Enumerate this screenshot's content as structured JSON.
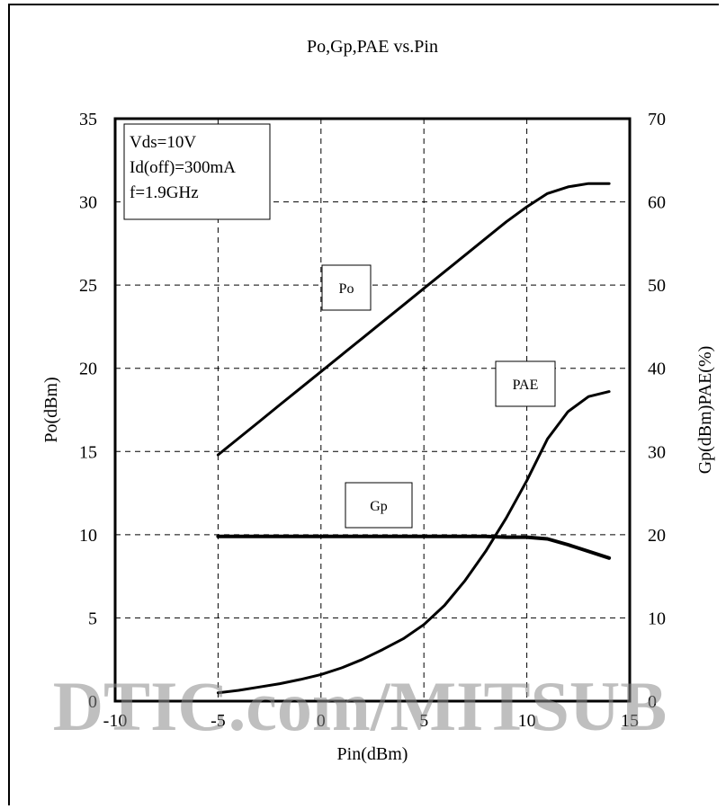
{
  "chart_data": {
    "type": "line",
    "title": "Po,Gp,PAE vs.Pin",
    "xlabel": "Pin(dBm)",
    "ylabel": "Po(dBm)",
    "y2label": "Gp(dBm)PAE(%)",
    "xlim": [
      -10,
      15
    ],
    "ylim": [
      0,
      35
    ],
    "y2lim": [
      0,
      70
    ],
    "xticks": [
      "-10",
      "-5",
      "0",
      "5",
      "10",
      "15"
    ],
    "yticks": [
      "0",
      "5",
      "10",
      "15",
      "20",
      "25",
      "30",
      "35"
    ],
    "y2ticks": [
      "0",
      "10",
      "20",
      "30",
      "40",
      "50",
      "60",
      "70"
    ],
    "grid": true,
    "conditions": [
      "Vds=10V",
      "Id(off)=300mA",
      "f=1.9GHz"
    ],
    "series": [
      {
        "name": "Po",
        "axis": "left",
        "x": [
          -5,
          -4,
          -3,
          -2,
          -1,
          0,
          1,
          2,
          3,
          4,
          5,
          6,
          7,
          8,
          9,
          10,
          11,
          12,
          13,
          14
        ],
        "y": [
          14.8,
          15.8,
          16.8,
          17.8,
          18.8,
          19.8,
          20.8,
          21.8,
          22.8,
          23.8,
          24.8,
          25.8,
          26.8,
          27.8,
          28.8,
          29.7,
          30.5,
          30.9,
          31.1,
          31.1
        ]
      },
      {
        "name": "Gp",
        "axis": "right",
        "x": [
          -5,
          -4,
          -3,
          -2,
          -1,
          0,
          1,
          2,
          3,
          4,
          5,
          6,
          7,
          8,
          9,
          10,
          11,
          12,
          13,
          14
        ],
        "y": [
          19.8,
          19.8,
          19.8,
          19.8,
          19.8,
          19.8,
          19.8,
          19.8,
          19.8,
          19.8,
          19.8,
          19.8,
          19.8,
          19.8,
          19.7,
          19.7,
          19.5,
          18.8,
          18.0,
          17.2
        ]
      },
      {
        "name": "PAE",
        "axis": "right",
        "x": [
          -5,
          -4,
          -3,
          -2,
          -1,
          0,
          1,
          2,
          3,
          4,
          5,
          6,
          7,
          8,
          9,
          10,
          11,
          12,
          13,
          14
        ],
        "y": [
          1.0,
          1.3,
          1.7,
          2.1,
          2.6,
          3.2,
          4.0,
          5.0,
          6.2,
          7.5,
          9.2,
          11.5,
          14.5,
          18.0,
          22.0,
          26.5,
          31.5,
          34.8,
          36.6,
          37.2
        ]
      }
    ],
    "watermark": "DTIC.com/MITSUB"
  }
}
